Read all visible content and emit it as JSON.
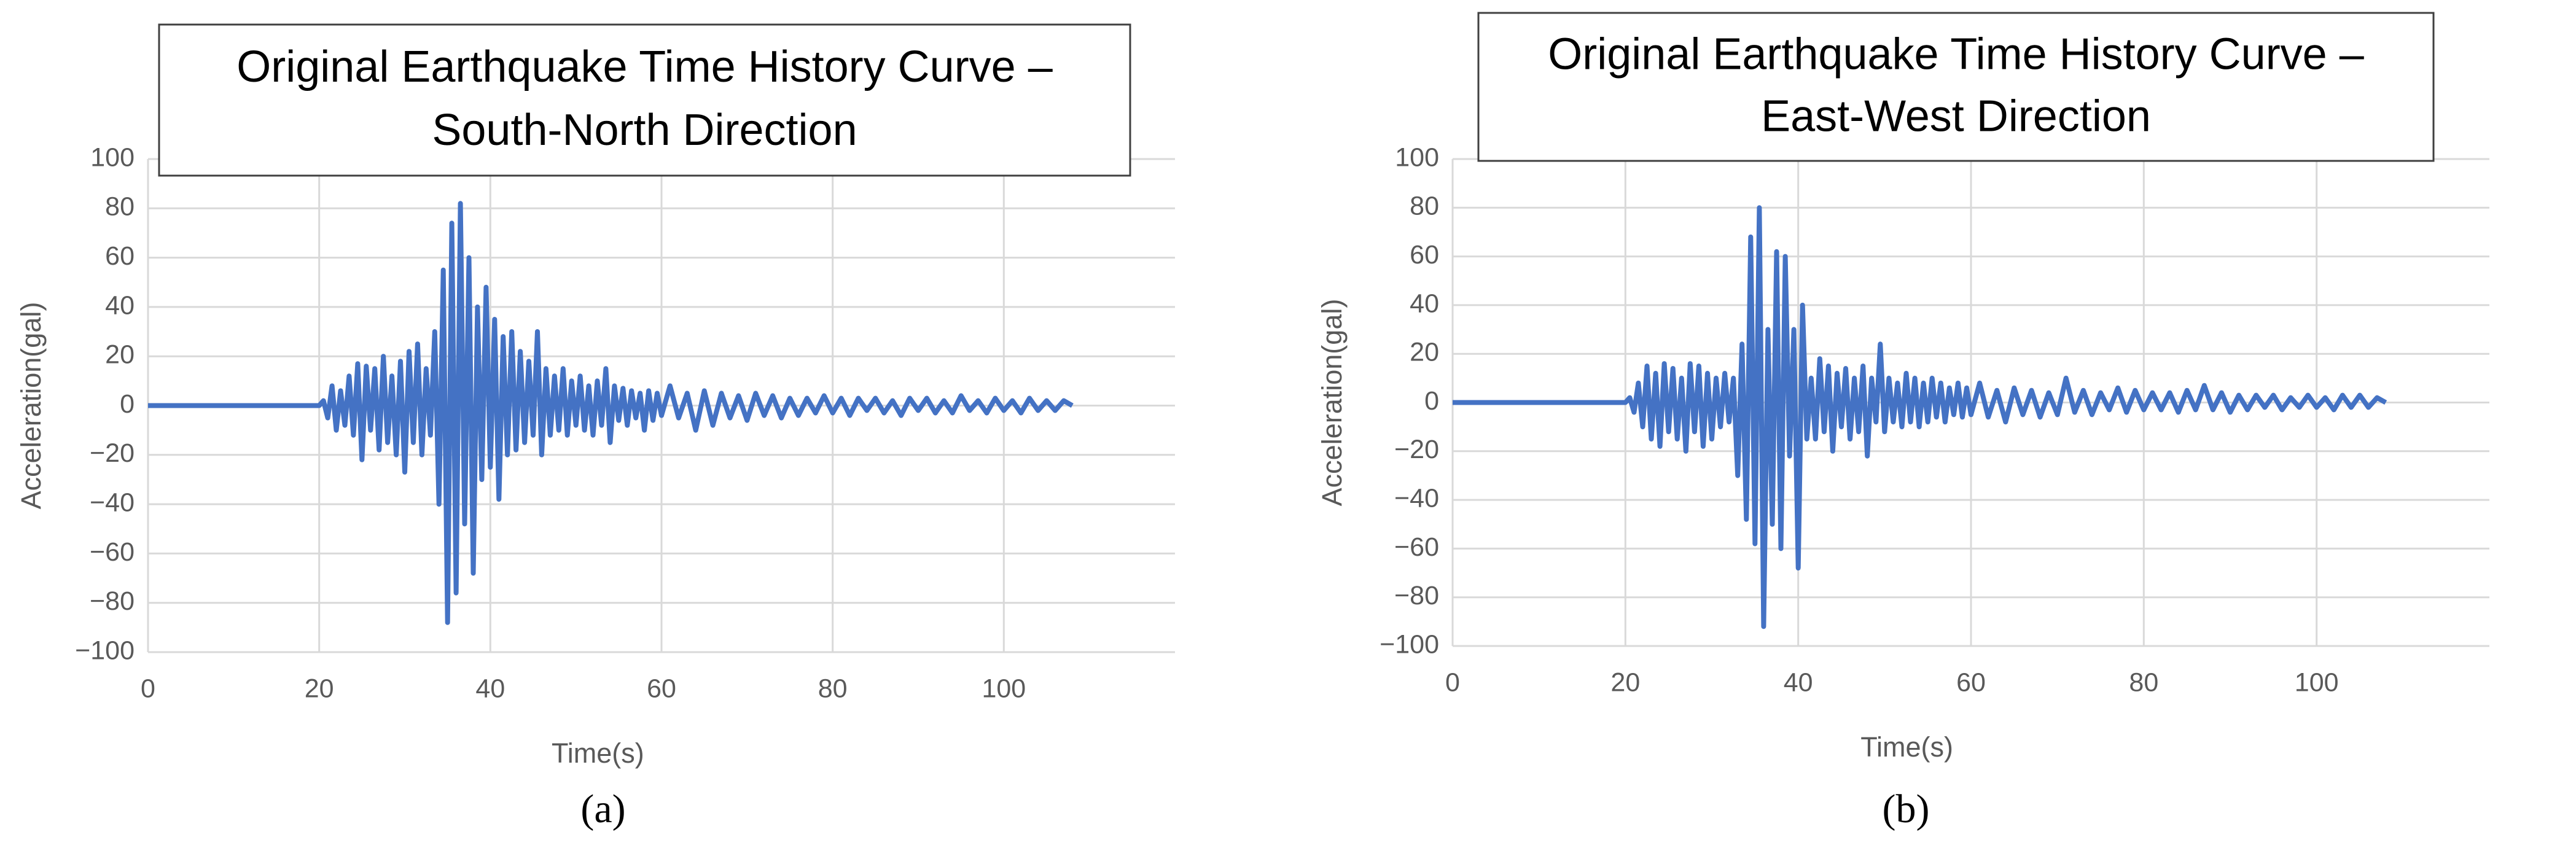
{
  "chart_data": [
    {
      "type": "line",
      "title": [
        "Original Earthquake Time History Curve –",
        "South-North Direction"
      ],
      "xlabel": "Time(s)",
      "ylabel": "Acceleration(gal)",
      "caption": "(a)",
      "xlim": [
        0,
        120
      ],
      "xticks": [
        0,
        20,
        40,
        60,
        80,
        100
      ],
      "ylim": [
        -100,
        100
      ],
      "yticks": [
        {
          "value": -100,
          "label": "−100"
        },
        {
          "value": -80,
          "label": "−80"
        },
        {
          "value": -60,
          "label": "−60"
        },
        {
          "value": -40,
          "label": "−40"
        },
        {
          "value": -20,
          "label": "−20"
        },
        0,
        20,
        40,
        60,
        80,
        100
      ],
      "grid": true,
      "x": [
        0,
        10,
        20,
        20.5,
        21,
        21.5,
        22,
        22.5,
        23,
        23.5,
        24,
        24.5,
        25,
        25.5,
        26,
        26.5,
        27,
        27.5,
        28,
        28.5,
        29,
        29.5,
        30,
        30.5,
        31,
        31.5,
        32,
        32.5,
        33,
        33.5,
        34,
        34.5,
        35,
        35.5,
        36,
        36.5,
        37,
        37.5,
        38,
        38.5,
        39,
        39.5,
        40,
        40.5,
        41,
        41.5,
        42,
        42.5,
        43,
        43.5,
        44,
        44.5,
        45,
        45.5,
        46,
        46.5,
        47,
        47.5,
        48,
        48.5,
        49,
        49.5,
        50,
        50.5,
        51,
        51.5,
        52,
        52.5,
        53,
        53.5,
        54,
        54.5,
        55,
        55.5,
        56,
        56.5,
        57,
        57.5,
        58,
        58.5,
        59,
        59.5,
        60,
        61,
        62,
        63,
        64,
        65,
        66,
        67,
        68,
        69,
        70,
        71,
        72,
        73,
        74,
        75,
        76,
        77,
        78,
        79,
        80,
        81,
        82,
        83,
        84,
        85,
        86,
        87,
        88,
        89,
        90,
        91,
        92,
        93,
        94,
        95,
        96,
        97,
        98,
        99,
        100,
        101,
        102,
        103,
        104,
        105,
        106,
        107,
        108
      ],
      "series": [
        {
          "color": "#4472c4",
          "values": [
            0,
            0,
            0,
            2,
            -5,
            8,
            -10,
            6,
            -8,
            12,
            -12,
            17,
            -22,
            16,
            -10,
            15,
            -18,
            20,
            -15,
            12,
            -20,
            18,
            -27,
            22,
            -15,
            25,
            -20,
            15,
            -12,
            30,
            -40,
            55,
            -88,
            74,
            -76,
            82,
            -48,
            60,
            -68,
            40,
            -30,
            48,
            -25,
            35,
            -38,
            28,
            -20,
            30,
            -18,
            22,
            -15,
            18,
            -12,
            30,
            -20,
            15,
            -12,
            12,
            -10,
            15,
            -12,
            10,
            -8,
            12,
            -10,
            8,
            -12,
            10,
            -8,
            15,
            -15,
            8,
            -6,
            7,
            -8,
            6,
            -5,
            5,
            -10,
            6,
            -6,
            5,
            -4,
            8,
            -5,
            5,
            -10,
            6,
            -8,
            5,
            -5,
            4,
            -6,
            5,
            -4,
            4,
            -5,
            3,
            -4,
            3,
            -3,
            4,
            -3,
            3,
            -4,
            3,
            -2,
            3,
            -3,
            2,
            -4,
            3,
            -2,
            3,
            -3,
            2,
            -3,
            4,
            -2,
            2,
            -3,
            3,
            -2,
            2,
            -3,
            3,
            -2,
            2,
            -2,
            2,
            0
          ]
        }
      ]
    },
    {
      "type": "line",
      "title": [
        "Original Earthquake Time History Curve –",
        "East-West Direction"
      ],
      "xlabel": "Time(s)",
      "ylabel": "Acceleration(gal)",
      "caption": "(b)",
      "xlim": [
        0,
        120
      ],
      "xticks": [
        0,
        20,
        40,
        60,
        80,
        100
      ],
      "ylim": [
        -100,
        100
      ],
      "yticks": [
        {
          "value": -100,
          "label": "−100"
        },
        {
          "value": -80,
          "label": "−80"
        },
        {
          "value": -60,
          "label": "−60"
        },
        {
          "value": -40,
          "label": "−40"
        },
        {
          "value": -20,
          "label": "−20"
        },
        0,
        20,
        40,
        60,
        80,
        100
      ],
      "grid": true,
      "x": [
        0,
        10,
        20,
        20.5,
        21,
        21.5,
        22,
        22.5,
        23,
        23.5,
        24,
        24.5,
        25,
        25.5,
        26,
        26.5,
        27,
        27.5,
        28,
        28.5,
        29,
        29.5,
        30,
        30.5,
        31,
        31.5,
        32,
        32.5,
        33,
        33.5,
        34,
        34.5,
        35,
        35.5,
        36,
        36.5,
        37,
        37.5,
        38,
        38.5,
        39,
        39.5,
        40,
        40.5,
        41,
        41.5,
        42,
        42.5,
        43,
        43.5,
        44,
        44.5,
        45,
        45.5,
        46,
        46.5,
        47,
        47.5,
        48,
        48.5,
        49,
        49.5,
        50,
        50.5,
        51,
        51.5,
        52,
        52.5,
        53,
        53.5,
        54,
        54.5,
        55,
        55.5,
        56,
        56.5,
        57,
        57.5,
        58,
        58.5,
        59,
        59.5,
        60,
        61,
        62,
        63,
        64,
        65,
        66,
        67,
        68,
        69,
        70,
        71,
        72,
        73,
        74,
        75,
        76,
        77,
        78,
        79,
        80,
        81,
        82,
        83,
        84,
        85,
        86,
        87,
        88,
        89,
        90,
        91,
        92,
        93,
        94,
        95,
        96,
        97,
        98,
        99,
        100,
        101,
        102,
        103,
        104,
        105,
        106,
        107,
        108
      ],
      "series": [
        {
          "color": "#4472c4",
          "values": [
            0,
            0,
            0,
            2,
            -4,
            8,
            -10,
            15,
            -15,
            12,
            -18,
            16,
            -12,
            14,
            -15,
            10,
            -20,
            16,
            -12,
            15,
            -18,
            12,
            -15,
            10,
            -10,
            12,
            -8,
            10,
            -30,
            24,
            -48,
            68,
            -58,
            80,
            -92,
            30,
            -50,
            62,
            -60,
            60,
            -22,
            30,
            -68,
            40,
            -15,
            10,
            -15,
            18,
            -12,
            15,
            -20,
            12,
            -10,
            14,
            -15,
            10,
            -12,
            15,
            -22,
            10,
            -8,
            24,
            -12,
            10,
            -8,
            8,
            -10,
            12,
            -8,
            10,
            -10,
            8,
            -8,
            10,
            -6,
            8,
            -8,
            6,
            -5,
            8,
            -6,
            6,
            -5,
            8,
            -6,
            5,
            -8,
            6,
            -5,
            5,
            -6,
            4,
            -5,
            10,
            -4,
            5,
            -5,
            4,
            -3,
            6,
            -4,
            5,
            -3,
            4,
            -3,
            4,
            -4,
            5,
            -3,
            7,
            -3,
            4,
            -4,
            3,
            -3,
            3,
            -2,
            3,
            -3,
            2,
            -2,
            3,
            -2,
            2,
            -3,
            3,
            -2,
            3,
            -2,
            2,
            0
          ]
        }
      ]
    }
  ]
}
